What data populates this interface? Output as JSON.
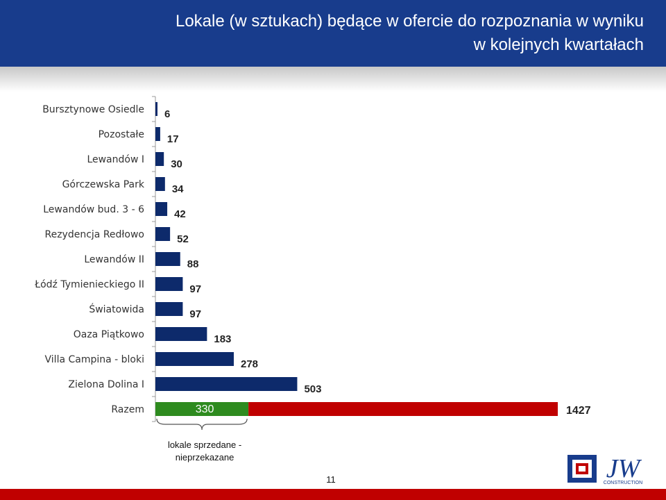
{
  "header": {
    "title_line1": "Lokale (w sztukach) będące w ofercie do rozpoznania w wyniku",
    "title_line2": "w kolejnych kwartałach"
  },
  "colors": {
    "header_bg": "#183c8c",
    "bar": "#0d2a6b",
    "sold": "#2e8b1f",
    "total": "#c00000"
  },
  "chart_data": {
    "type": "bar",
    "orientation": "horizontal",
    "title": "",
    "xlabel": "",
    "ylabel": "",
    "xlim": [
      0,
      1427
    ],
    "grid": false,
    "categories": [
      "Bursztynowe Osiedle",
      "Pozostałe",
      "Lewandów I",
      "Górczewska Park",
      "Lewandów bud. 3 - 6",
      "Rezydencja Redłowo",
      "Lewandów II",
      "Łódź Tymienieckiego II",
      "Światowida",
      "Oaza Piątkowo",
      "Villa Campina - bloki",
      "Zielona Dolina I"
    ],
    "values": [
      6,
      17,
      30,
      34,
      42,
      52,
      88,
      97,
      97,
      183,
      278,
      503
    ],
    "total": {
      "label": "Razem",
      "sold": 330,
      "value": 1427,
      "annotation_line1": "lokale sprzedane -",
      "annotation_line2": "nieprzekazane"
    }
  },
  "footer": {
    "page_number": "11",
    "logo_text": "JW",
    "logo_subtext": "CONSTRUCTION"
  }
}
